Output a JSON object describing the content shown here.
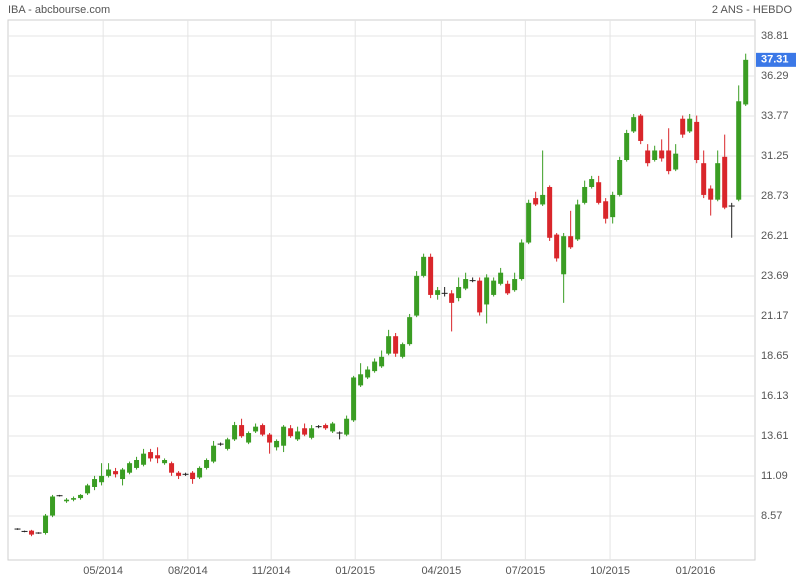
{
  "chart_data": {
    "type": "candlestick",
    "title": "IBA - abcbourse.com",
    "subtitle": "2 ANS - HEBDO",
    "open": [
      7.75,
      7.6,
      7.65,
      7.5,
      7.5,
      8.6,
      9.85,
      9.5,
      9.6,
      9.7,
      10.0,
      10.4,
      10.7,
      11.1,
      11.4,
      10.9,
      11.3,
      11.6,
      11.8,
      12.6,
      12.4,
      11.9,
      11.9,
      11.3,
      11.2,
      11.3,
      11.0,
      11.6,
      12.0,
      13.1,
      12.8,
      13.4,
      14.3,
      13.2,
      13.9,
      14.3,
      13.7,
      12.9,
      13.0,
      14.1,
      13.4,
      14.1,
      13.5,
      14.2,
      14.3,
      13.9,
      13.8,
      13.7,
      14.6,
      16.8,
      17.3,
      17.7,
      18.0,
      18.8,
      19.9,
      18.6,
      19.4,
      21.2,
      23.7,
      24.9,
      22.5,
      22.6,
      22.6,
      22.3,
      22.9,
      23.4,
      23.4,
      21.9,
      22.5,
      23.2,
      23.2,
      22.8,
      23.5,
      25.8,
      28.6,
      28.2,
      29.3,
      26.3,
      23.8,
      26.2,
      26.0,
      28.3,
      29.3,
      29.6,
      28.4,
      27.4,
      28.8,
      31.0,
      32.8,
      33.8,
      31.6,
      31.0,
      31.6,
      31.6,
      30.4,
      33.6,
      32.8,
      33.4,
      30.8,
      29.2,
      28.5,
      31.2,
      28.1,
      28.5,
      34.5
    ],
    "high": [
      7.8,
      7.65,
      7.7,
      7.55,
      8.7,
      9.9,
      9.9,
      9.7,
      9.8,
      9.95,
      10.6,
      11.1,
      11.9,
      11.9,
      11.6,
      11.6,
      12.0,
      12.3,
      12.8,
      12.8,
      12.9,
      12.2,
      12.0,
      11.4,
      11.3,
      11.4,
      11.7,
      12.2,
      13.3,
      13.2,
      13.5,
      14.5,
      14.7,
      13.9,
      14.4,
      14.4,
      13.8,
      13.4,
      14.3,
      14.3,
      14.2,
      14.4,
      14.3,
      14.3,
      14.4,
      14.5,
      13.9,
      14.9,
      17.4,
      18.2,
      18.0,
      18.5,
      19.0,
      20.3,
      20.1,
      19.5,
      21.3,
      24.0,
      25.1,
      25.1,
      23.0,
      23.0,
      22.8,
      23.6,
      23.9,
      23.6,
      23.6,
      23.8,
      23.6,
      24.2,
      23.4,
      23.9,
      26.0,
      28.5,
      29.0,
      31.6,
      29.4,
      26.4,
      26.4,
      27.8,
      28.5,
      29.7,
      30.0,
      30.0,
      28.6,
      29.0,
      31.2,
      32.9,
      33.9,
      33.9,
      32.0,
      31.9,
      32.3,
      33.0,
      32.0,
      33.8,
      33.9,
      33.8,
      31.6,
      29.4,
      31.6,
      32.6,
      28.3,
      35.7,
      37.7
    ],
    "low": [
      7.7,
      7.55,
      7.3,
      7.45,
      7.4,
      8.5,
      9.8,
      9.4,
      9.5,
      9.6,
      9.9,
      10.2,
      10.5,
      11.0,
      11.0,
      10.5,
      11.2,
      11.5,
      11.7,
      12.0,
      11.9,
      11.8,
      11.1,
      10.9,
      11.1,
      10.6,
      10.9,
      11.5,
      11.9,
      13.0,
      12.7,
      13.3,
      13.5,
      13.1,
      13.8,
      13.6,
      12.5,
      12.7,
      12.6,
      13.5,
      13.3,
      13.6,
      13.4,
      14.1,
      14.0,
      13.8,
      13.4,
      13.6,
      14.5,
      16.7,
      17.2,
      17.6,
      17.9,
      18.7,
      18.6,
      18.5,
      19.3,
      21.1,
      23.6,
      22.3,
      22.2,
      22.4,
      20.2,
      22.1,
      22.8,
      23.3,
      21.2,
      20.7,
      22.4,
      23.1,
      22.5,
      22.7,
      23.4,
      25.7,
      28.1,
      28.1,
      25.9,
      24.6,
      22.0,
      25.4,
      25.9,
      28.2,
      29.2,
      28.2,
      27.0,
      27.0,
      28.7,
      30.9,
      32.7,
      32.0,
      30.6,
      30.9,
      30.9,
      30.1,
      30.3,
      32.4,
      32.7,
      30.8,
      28.6,
      27.5,
      28.4,
      27.9,
      26.1,
      28.4,
      34.4
    ],
    "close": [
      7.75,
      7.6,
      7.4,
      7.5,
      8.6,
      9.8,
      9.85,
      9.6,
      9.7,
      9.9,
      10.5,
      10.9,
      11.1,
      11.5,
      11.2,
      11.5,
      11.9,
      12.1,
      12.5,
      12.2,
      12.2,
      12.1,
      11.3,
      11.1,
      11.2,
      10.9,
      11.6,
      12.1,
      13.0,
      13.1,
      13.4,
      14.3,
      13.6,
      13.8,
      14.2,
      13.7,
      13.2,
      13.3,
      14.2,
      13.6,
      13.9,
      13.7,
      14.1,
      14.2,
      14.1,
      14.4,
      13.8,
      14.7,
      17.3,
      17.5,
      17.8,
      18.3,
      18.6,
      19.9,
      18.8,
      19.4,
      21.1,
      23.7,
      24.9,
      22.5,
      22.8,
      22.6,
      22.0,
      23.0,
      23.5,
      23.4,
      21.4,
      23.6,
      23.4,
      23.9,
      22.6,
      23.5,
      25.8,
      28.3,
      28.2,
      28.8,
      26.1,
      24.8,
      26.2,
      25.5,
      28.2,
      29.3,
      29.8,
      28.3,
      27.3,
      28.8,
      31.0,
      32.7,
      33.7,
      32.2,
      30.8,
      31.6,
      31.1,
      30.3,
      31.4,
      32.6,
      33.6,
      31.0,
      28.8,
      28.5,
      30.8,
      28.0,
      28.1,
      34.7,
      37.31
    ],
    "up_color": "#3a9d23",
    "down_color": "#d9262b",
    "doji_color": "#222222",
    "last_color": "#3b78e7",
    "xlim": [
      -1.29,
      105.4
    ],
    "xticks": [
      {
        "value": 12.3,
        "label": "05/2014"
      },
      {
        "value": 24.4,
        "label": "08/2014"
      },
      {
        "value": 36.3,
        "label": "11/2014"
      },
      {
        "value": 48.3,
        "label": "01/2015"
      },
      {
        "value": 60.6,
        "label": "04/2015"
      },
      {
        "value": 72.6,
        "label": "07/2015"
      },
      {
        "value": 84.7,
        "label": "10/2015"
      },
      {
        "value": 96.9,
        "label": "01/2016"
      }
    ],
    "ylim": [
      5.8,
      39.82
    ],
    "yticks": [
      8.57,
      11.09,
      13.61,
      16.13,
      18.65,
      21.17,
      23.69,
      26.21,
      28.73,
      31.25,
      33.77,
      36.29,
      38.81
    ],
    "grid": true
  }
}
